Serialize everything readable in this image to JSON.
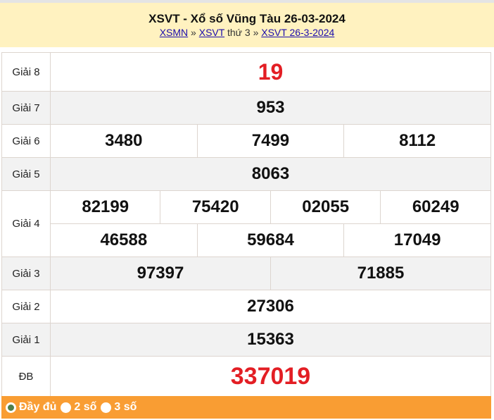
{
  "header": {
    "title": "XSVT - Xổ số Vũng Tàu 26-03-2024",
    "crumbs": {
      "link1": "XSMN",
      "sep1": " » ",
      "link2": "XSVT",
      "text": " thứ 3 » ",
      "link3": "XSVT 26-3-2024"
    }
  },
  "results": {
    "g8": {
      "label": "Giải 8",
      "values": [
        "19"
      ]
    },
    "g7": {
      "label": "Giải 7",
      "values": [
        "953"
      ]
    },
    "g6": {
      "label": "Giải 6",
      "values": [
        "3480",
        "7499",
        "8112"
      ]
    },
    "g5": {
      "label": "Giải 5",
      "values": [
        "8063"
      ]
    },
    "g4": {
      "label": "Giải 4",
      "values": [
        "82199",
        "75420",
        "02055",
        "60249",
        "46588",
        "59684",
        "17049"
      ]
    },
    "g3": {
      "label": "Giải 3",
      "values": [
        "97397",
        "71885"
      ]
    },
    "g2": {
      "label": "Giải 2",
      "values": [
        "27306"
      ]
    },
    "g1": {
      "label": "Giải 1",
      "values": [
        "15363"
      ]
    },
    "db": {
      "label": "ĐB",
      "values": [
        "337019"
      ]
    }
  },
  "footer": {
    "options": [
      {
        "label": "Đầy đủ",
        "selected": true
      },
      {
        "label": "2 số",
        "selected": false
      },
      {
        "label": "3 số",
        "selected": false
      }
    ]
  },
  "colors": {
    "highlight": "#e31e24",
    "header_bg": "#fff2c0",
    "footer_bg": "#f99d33"
  }
}
